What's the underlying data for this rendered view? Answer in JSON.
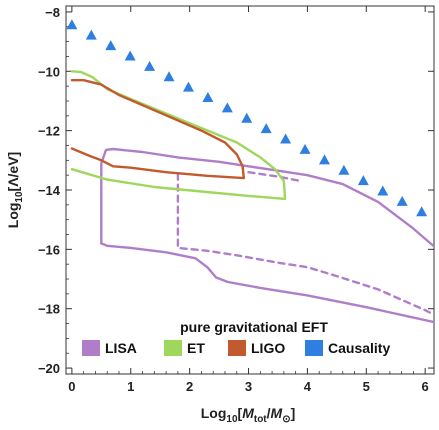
{
  "chart_data": {
    "type": "line",
    "title": "",
    "xlabel": "Log10[Mtot/M⊙]",
    "ylabel": "Log10[Λ/eV]",
    "xlim": [
      -0.1,
      6.15
    ],
    "ylim": [
      -20.2,
      -7.8
    ],
    "xticks": [
      0,
      1,
      2,
      3,
      4,
      5,
      6
    ],
    "yticks": [
      -20,
      -18,
      -16,
      -14,
      -12,
      -10,
      -8
    ],
    "legend": {
      "title": "pure gravitational EFT",
      "placement": "bottom",
      "entries": [
        {
          "label": "LISA",
          "color": "#b07ec9"
        },
        {
          "label": "ET",
          "color": "#9fd65c"
        },
        {
          "label": "LIGO",
          "color": "#c15a2e"
        },
        {
          "label": "Causality",
          "color": "#2f7fe0"
        }
      ]
    },
    "series": [
      {
        "name": "LISA",
        "color": "#b07ec9",
        "style": "solid",
        "segments": [
          [
            [
              0.5,
              -15.8
            ],
            [
              0.5,
              -13.1
            ],
            [
              0.58,
              -12.65
            ],
            [
              0.7,
              -12.62
            ],
            [
              1.2,
              -12.72
            ],
            [
              1.8,
              -12.9
            ],
            [
              2.5,
              -13.05
            ],
            [
              3.0,
              -13.2
            ],
            [
              3.5,
              -13.35
            ],
            [
              4.0,
              -13.5
            ],
            [
              4.6,
              -13.8
            ],
            [
              5.2,
              -14.4
            ],
            [
              5.8,
              -15.3
            ],
            [
              6.15,
              -15.9
            ]
          ],
          [
            [
              0.5,
              -15.8
            ],
            [
              0.6,
              -15.88
            ],
            [
              1.0,
              -15.95
            ],
            [
              1.6,
              -16.1
            ],
            [
              2.1,
              -16.3
            ],
            [
              2.3,
              -16.6
            ],
            [
              2.45,
              -16.95
            ],
            [
              2.65,
              -17.1
            ],
            [
              3.2,
              -17.3
            ],
            [
              4.0,
              -17.55
            ],
            [
              5.0,
              -17.95
            ],
            [
              6.15,
              -18.45
            ]
          ]
        ]
      },
      {
        "name": "LISA",
        "color": "#b07ec9",
        "style": "dashed",
        "segments": [
          [
            [
              1.8,
              -13.45
            ],
            [
              1.8,
              -15.95
            ],
            [
              2.3,
              -16.05
            ],
            [
              2.8,
              -16.2
            ],
            [
              3.5,
              -16.45
            ],
            [
              4.0,
              -16.6
            ],
            [
              4.5,
              -16.9
            ],
            [
              5.2,
              -17.35
            ],
            [
              6.0,
              -18.05
            ],
            [
              6.15,
              -18.2
            ]
          ],
          [
            [
              3.0,
              -13.4
            ],
            [
              3.5,
              -13.55
            ],
            [
              3.9,
              -13.7
            ]
          ]
        ]
      },
      {
        "name": "ET",
        "color": "#9fd65c",
        "style": "solid",
        "segments": [
          [
            [
              0.0,
              -10.0
            ],
            [
              0.15,
              -10.02
            ],
            [
              0.35,
              -10.2
            ],
            [
              0.6,
              -10.6
            ],
            [
              1.2,
              -11.1
            ],
            [
              2.0,
              -11.75
            ],
            [
              2.8,
              -12.4
            ],
            [
              3.2,
              -12.9
            ],
            [
              3.45,
              -13.3
            ],
            [
              3.6,
              -13.7
            ],
            [
              3.62,
              -14.3
            ],
            [
              3.0,
              -14.2
            ],
            [
              2.2,
              -14.05
            ],
            [
              1.4,
              -13.9
            ],
            [
              0.6,
              -13.65
            ],
            [
              0.0,
              -13.3
            ]
          ]
        ]
      },
      {
        "name": "LIGO",
        "color": "#c15a2e",
        "style": "solid",
        "segments": [
          [
            [
              0.0,
              -10.3
            ],
            [
              0.2,
              -10.3
            ],
            [
              0.5,
              -10.45
            ],
            [
              0.8,
              -10.8
            ],
            [
              1.5,
              -11.4
            ],
            [
              2.2,
              -12.0
            ],
            [
              2.6,
              -12.4
            ],
            [
              2.8,
              -12.8
            ],
            [
              2.9,
              -13.2
            ],
            [
              2.92,
              -13.6
            ],
            [
              2.3,
              -13.52
            ],
            [
              1.6,
              -13.4
            ],
            [
              1.0,
              -13.25
            ],
            [
              0.7,
              -13.2
            ],
            [
              0.5,
              -13.0
            ],
            [
              0.3,
              -12.85
            ],
            [
              0.0,
              -12.6
            ]
          ]
        ]
      },
      {
        "name": "Causality",
        "color": "#2f7fe0",
        "style": "markers",
        "marker": "triangle",
        "x": [
          0.0,
          0.33,
          0.66,
          0.99,
          1.32,
          1.65,
          1.98,
          2.31,
          2.64,
          2.97,
          3.3,
          3.63,
          3.96,
          4.29,
          4.62,
          4.95,
          5.28,
          5.61,
          5.94
        ],
        "y": [
          -8.45,
          -8.8,
          -9.15,
          -9.5,
          -9.85,
          -10.2,
          -10.55,
          -10.9,
          -11.25,
          -11.6,
          -11.95,
          -12.3,
          -12.65,
          -13.0,
          -13.35,
          -13.7,
          -14.05,
          -14.4,
          -14.75
        ]
      }
    ]
  }
}
